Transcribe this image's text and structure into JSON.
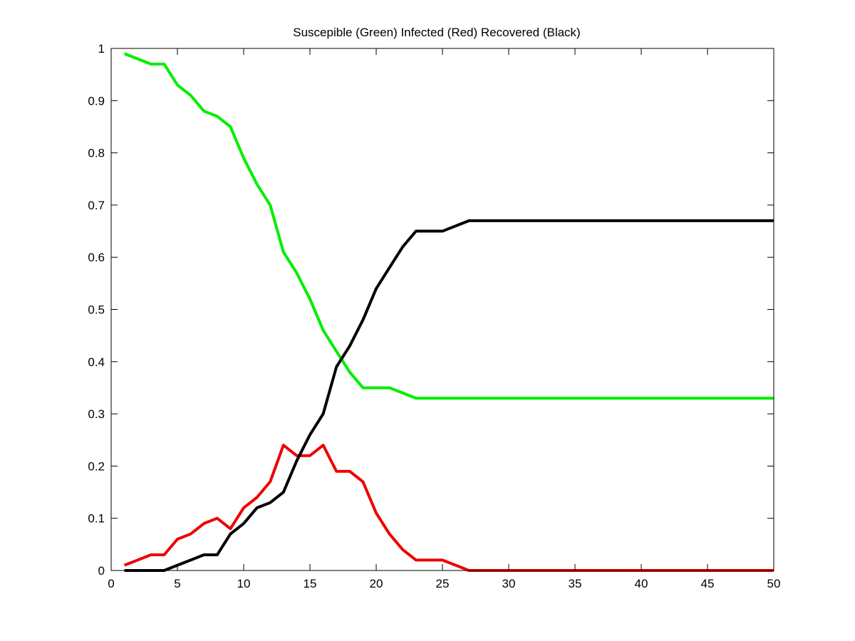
{
  "chart_data": {
    "type": "line",
    "title": "Suscepible (Green) Infected (Red) Recovered (Black)",
    "xlabel": "",
    "ylabel": "",
    "xlim": [
      0,
      50
    ],
    "ylim": [
      0,
      1
    ],
    "xticks": [
      0,
      5,
      10,
      15,
      20,
      25,
      30,
      35,
      40,
      45,
      50
    ],
    "yticks": [
      0,
      0.1,
      0.2,
      0.3,
      0.4,
      0.5,
      0.6,
      0.7,
      0.8,
      0.9,
      1
    ],
    "xtick_labels": [
      "0",
      "5",
      "10",
      "15",
      "20",
      "25",
      "30",
      "35",
      "40",
      "45",
      "50"
    ],
    "ytick_labels": [
      "0",
      "0.1",
      "0.2",
      "0.3",
      "0.4",
      "0.5",
      "0.6",
      "0.7",
      "0.8",
      "0.9",
      "1"
    ],
    "grid": false,
    "legend": "none",
    "x": [
      1,
      2,
      3,
      4,
      5,
      6,
      7,
      8,
      9,
      10,
      11,
      12,
      13,
      14,
      15,
      16,
      17,
      18,
      19,
      20,
      21,
      22,
      23,
      24,
      25,
      26,
      27,
      28,
      29,
      30,
      31,
      32,
      33,
      34,
      35,
      36,
      37,
      38,
      39,
      40,
      41,
      42,
      43,
      44,
      45,
      46,
      47,
      48,
      49,
      50
    ],
    "series": [
      {
        "color": "#00ee00",
        "values": [
          0.99,
          0.98,
          0.97,
          0.97,
          0.93,
          0.91,
          0.88,
          0.87,
          0.85,
          0.79,
          0.74,
          0.7,
          0.61,
          0.57,
          0.52,
          0.46,
          0.42,
          0.38,
          0.35,
          0.35,
          0.35,
          0.34,
          0.33,
          0.33,
          0.33,
          0.33,
          0.33,
          0.33,
          0.33,
          0.33,
          0.33,
          0.33,
          0.33,
          0.33,
          0.33,
          0.33,
          0.33,
          0.33,
          0.33,
          0.33,
          0.33,
          0.33,
          0.33,
          0.33,
          0.33,
          0.33,
          0.33,
          0.33,
          0.33,
          0.33
        ]
      },
      {
        "color": "#ee0000",
        "values": [
          0.01,
          0.02,
          0.03,
          0.03,
          0.06,
          0.07,
          0.09,
          0.1,
          0.08,
          0.12,
          0.14,
          0.17,
          0.24,
          0.22,
          0.22,
          0.24,
          0.19,
          0.19,
          0.17,
          0.11,
          0.07,
          0.04,
          0.02,
          0.02,
          0.02,
          0.01,
          0.0,
          0,
          0,
          0,
          0,
          0,
          0,
          0,
          0,
          0,
          0,
          0,
          0,
          0,
          0,
          0,
          0,
          0,
          0,
          0,
          0,
          0,
          0,
          0
        ]
      },
      {
        "color": "#000000",
        "values": [
          0.0,
          0.0,
          0.0,
          0.0,
          0.01,
          0.02,
          0.03,
          0.03,
          0.07,
          0.09,
          0.12,
          0.13,
          0.15,
          0.21,
          0.26,
          0.3,
          0.39,
          0.43,
          0.48,
          0.54,
          0.58,
          0.62,
          0.65,
          0.65,
          0.65,
          0.66,
          0.67,
          0.67,
          0.67,
          0.67,
          0.67,
          0.67,
          0.67,
          0.67,
          0.67,
          0.67,
          0.67,
          0.67,
          0.67,
          0.67,
          0.67,
          0.67,
          0.67,
          0.67,
          0.67,
          0.67,
          0.67,
          0.67,
          0.67,
          0.67
        ]
      }
    ]
  }
}
